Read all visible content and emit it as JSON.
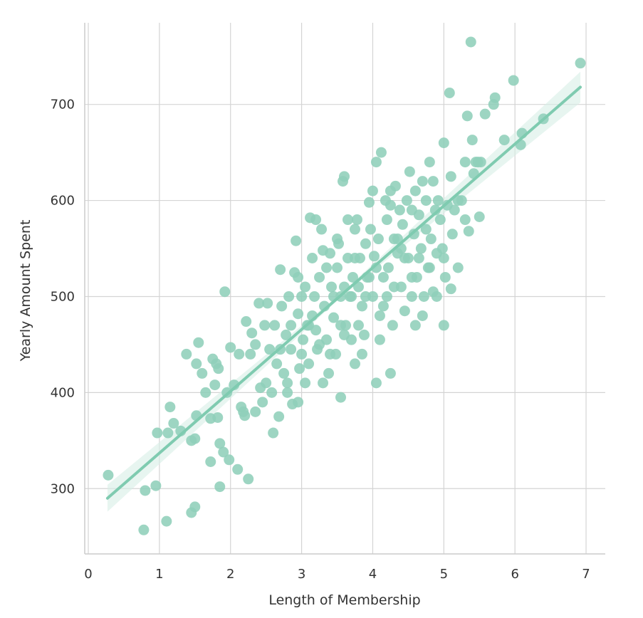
{
  "chart_data": {
    "type": "scatter",
    "xlabel": "Length of Membership",
    "ylabel": "Yearly Amount Spent",
    "xlim": [
      -0.05,
      7.27
    ],
    "ylim": [
      232,
      785
    ],
    "xticks": [
      0,
      1,
      2,
      3,
      4,
      5,
      6,
      7
    ],
    "yticks": [
      300,
      400,
      500,
      600,
      700
    ],
    "grid": true,
    "colors": {
      "points": "#8fcfb9",
      "line": "#7fcbb0",
      "band": "#d7efe6",
      "grid": "#d4d4d4",
      "axis": "#cccccc"
    },
    "regression": {
      "x": [
        0.27,
        6.92
      ],
      "y": [
        290,
        718
      ]
    },
    "points": [
      [
        0.28,
        314
      ],
      [
        0.8,
        298
      ],
      [
        0.95,
        303
      ],
      [
        0.78,
        257
      ],
      [
        1.1,
        266
      ],
      [
        0.97,
        358
      ],
      [
        1.15,
        385
      ],
      [
        1.12,
        358
      ],
      [
        1.2,
        368
      ],
      [
        1.3,
        360
      ],
      [
        1.38,
        440
      ],
      [
        1.45,
        350
      ],
      [
        1.5,
        352
      ],
      [
        1.52,
        376
      ],
      [
        1.45,
        275
      ],
      [
        1.5,
        281
      ],
      [
        1.52,
        430
      ],
      [
        1.55,
        452
      ],
      [
        1.6,
        420
      ],
      [
        1.65,
        400
      ],
      [
        1.72,
        328
      ],
      [
        1.72,
        373
      ],
      [
        1.75,
        435
      ],
      [
        1.78,
        408
      ],
      [
        1.8,
        430
      ],
      [
        1.82,
        374
      ],
      [
        1.83,
        425
      ],
      [
        1.85,
        302
      ],
      [
        1.85,
        347
      ],
      [
        1.9,
        338
      ],
      [
        1.92,
        505
      ],
      [
        1.95,
        400
      ],
      [
        1.98,
        330
      ],
      [
        2.0,
        447
      ],
      [
        2.05,
        408
      ],
      [
        2.1,
        320
      ],
      [
        2.12,
        440
      ],
      [
        2.15,
        385
      ],
      [
        2.18,
        380
      ],
      [
        2.2,
        376
      ],
      [
        2.22,
        474
      ],
      [
        2.25,
        310
      ],
      [
        2.28,
        440
      ],
      [
        2.3,
        462
      ],
      [
        2.35,
        450
      ],
      [
        2.4,
        493
      ],
      [
        2.42,
        405
      ],
      [
        2.45,
        390
      ],
      [
        2.48,
        470
      ],
      [
        2.52,
        493
      ],
      [
        2.55,
        445
      ],
      [
        2.58,
        400
      ],
      [
        2.6,
        358
      ],
      [
        2.62,
        470
      ],
      [
        2.65,
        430
      ],
      [
        2.68,
        375
      ],
      [
        2.7,
        528
      ],
      [
        2.72,
        490
      ],
      [
        2.75,
        420
      ],
      [
        2.78,
        460
      ],
      [
        2.8,
        410
      ],
      [
        2.82,
        500
      ],
      [
        2.85,
        445
      ],
      [
        2.87,
        388
      ],
      [
        2.9,
        525
      ],
      [
        2.92,
        558
      ],
      [
        2.95,
        482
      ],
      [
        2.97,
        425
      ],
      [
        3.0,
        500
      ],
      [
        3.02,
        455
      ],
      [
        3.05,
        510
      ],
      [
        3.08,
        470
      ],
      [
        3.1,
        430
      ],
      [
        3.12,
        582
      ],
      [
        3.15,
        540
      ],
      [
        3.18,
        500
      ],
      [
        3.2,
        465
      ],
      [
        3.22,
        445
      ],
      [
        3.25,
        520
      ],
      [
        3.28,
        570
      ],
      [
        3.3,
        548
      ],
      [
        3.32,
        490
      ],
      [
        3.35,
        455
      ],
      [
        3.38,
        420
      ],
      [
        3.4,
        545
      ],
      [
        3.42,
        510
      ],
      [
        3.45,
        478
      ],
      [
        3.48,
        440
      ],
      [
        3.5,
        530
      ],
      [
        3.52,
        555
      ],
      [
        3.55,
        500
      ],
      [
        3.58,
        620
      ],
      [
        3.6,
        625
      ],
      [
        3.62,
        470
      ],
      [
        3.65,
        540
      ],
      [
        3.68,
        500
      ],
      [
        3.7,
        455
      ],
      [
        3.72,
        520
      ],
      [
        3.75,
        570
      ],
      [
        3.78,
        580
      ],
      [
        3.8,
        510
      ],
      [
        3.82,
        540
      ],
      [
        3.85,
        490
      ],
      [
        3.88,
        460
      ],
      [
        3.9,
        555
      ],
      [
        3.92,
        520
      ],
      [
        3.95,
        598
      ],
      [
        3.97,
        570
      ],
      [
        4.0,
        500
      ],
      [
        4.02,
        542
      ],
      [
        4.05,
        640
      ],
      [
        4.08,
        560
      ],
      [
        4.1,
        480
      ],
      [
        4.12,
        650
      ],
      [
        4.15,
        520
      ],
      [
        4.18,
        600
      ],
      [
        4.2,
        500
      ],
      [
        4.22,
        530
      ],
      [
        4.25,
        595
      ],
      [
        4.28,
        470
      ],
      [
        4.3,
        560
      ],
      [
        4.32,
        615
      ],
      [
        4.35,
        545
      ],
      [
        4.38,
        590
      ],
      [
        4.4,
        510
      ],
      [
        4.42,
        575
      ],
      [
        4.45,
        485
      ],
      [
        4.48,
        600
      ],
      [
        4.5,
        540
      ],
      [
        4.52,
        630
      ],
      [
        4.55,
        500
      ],
      [
        4.58,
        565
      ],
      [
        4.6,
        610
      ],
      [
        4.62,
        520
      ],
      [
        4.65,
        585
      ],
      [
        4.68,
        550
      ],
      [
        4.7,
        620
      ],
      [
        4.72,
        500
      ],
      [
        4.75,
        570
      ],
      [
        4.78,
        530
      ],
      [
        4.8,
        640
      ],
      [
        4.82,
        560
      ],
      [
        4.85,
        505
      ],
      [
        4.88,
        590
      ],
      [
        4.9,
        545
      ],
      [
        4.92,
        600
      ],
      [
        4.95,
        580
      ],
      [
        4.98,
        550
      ],
      [
        5.0,
        660
      ],
      [
        5.02,
        520
      ],
      [
        5.05,
        595
      ],
      [
        5.08,
        712
      ],
      [
        5.1,
        508
      ],
      [
        5.12,
        565
      ],
      [
        5.15,
        590
      ],
      [
        5.2,
        530
      ],
      [
        5.25,
        600
      ],
      [
        5.3,
        640
      ],
      [
        5.33,
        688
      ],
      [
        5.35,
        568
      ],
      [
        5.38,
        765
      ],
      [
        5.4,
        663
      ],
      [
        5.42,
        628
      ],
      [
        5.45,
        640
      ],
      [
        5.48,
        640
      ],
      [
        5.5,
        583
      ],
      [
        5.52,
        640
      ],
      [
        5.58,
        690
      ],
      [
        5.7,
        700
      ],
      [
        5.72,
        707
      ],
      [
        5.85,
        663
      ],
      [
        5.98,
        725
      ],
      [
        6.08,
        658
      ],
      [
        6.1,
        670
      ],
      [
        6.4,
        685
      ],
      [
        6.92,
        743
      ],
      [
        2.35,
        380
      ],
      [
        2.5,
        410
      ],
      [
        2.8,
        400
      ],
      [
        3.05,
        410
      ],
      [
        3.3,
        410
      ],
      [
        3.55,
        395
      ],
      [
        3.75,
        430
      ],
      [
        4.05,
        410
      ],
      [
        4.25,
        420
      ],
      [
        3.85,
        440
      ],
      [
        4.1,
        455
      ],
      [
        3.6,
        460
      ],
      [
        3.45,
        500
      ],
      [
        3.15,
        480
      ],
      [
        2.95,
        520
      ],
      [
        3.35,
        530
      ],
      [
        3.65,
        580
      ],
      [
        3.95,
        520
      ],
      [
        4.3,
        510
      ],
      [
        4.6,
        470
      ],
      [
        4.7,
        480
      ],
      [
        4.9,
        500
      ],
      [
        5.0,
        470
      ],
      [
        4.45,
        540
      ],
      [
        3.2,
        580
      ],
      [
        3.5,
        560
      ],
      [
        3.75,
        540
      ],
      [
        4.0,
        610
      ],
      [
        4.2,
        580
      ],
      [
        3.0,
        440
      ],
      [
        2.7,
        445
      ],
      [
        2.85,
        470
      ],
      [
        3.4,
        440
      ],
      [
        3.6,
        510
      ],
      [
        3.9,
        500
      ],
      [
        4.15,
        490
      ],
      [
        4.35,
        560
      ],
      [
        4.55,
        590
      ],
      [
        4.75,
        600
      ],
      [
        4.85,
        620
      ],
      [
        5.1,
        625
      ],
      [
        5.2,
        600
      ],
      [
        5.3,
        580
      ],
      [
        4.65,
        540
      ],
      [
        4.25,
        610
      ],
      [
        3.7,
        500
      ],
      [
        3.25,
        450
      ],
      [
        2.95,
        390
      ],
      [
        3.1,
        470
      ],
      [
        3.55,
        470
      ],
      [
        3.8,
        470
      ],
      [
        4.05,
        530
      ],
      [
        4.4,
        550
      ],
      [
        4.55,
        520
      ],
      [
        4.8,
        530
      ],
      [
        5.0,
        540
      ]
    ]
  }
}
